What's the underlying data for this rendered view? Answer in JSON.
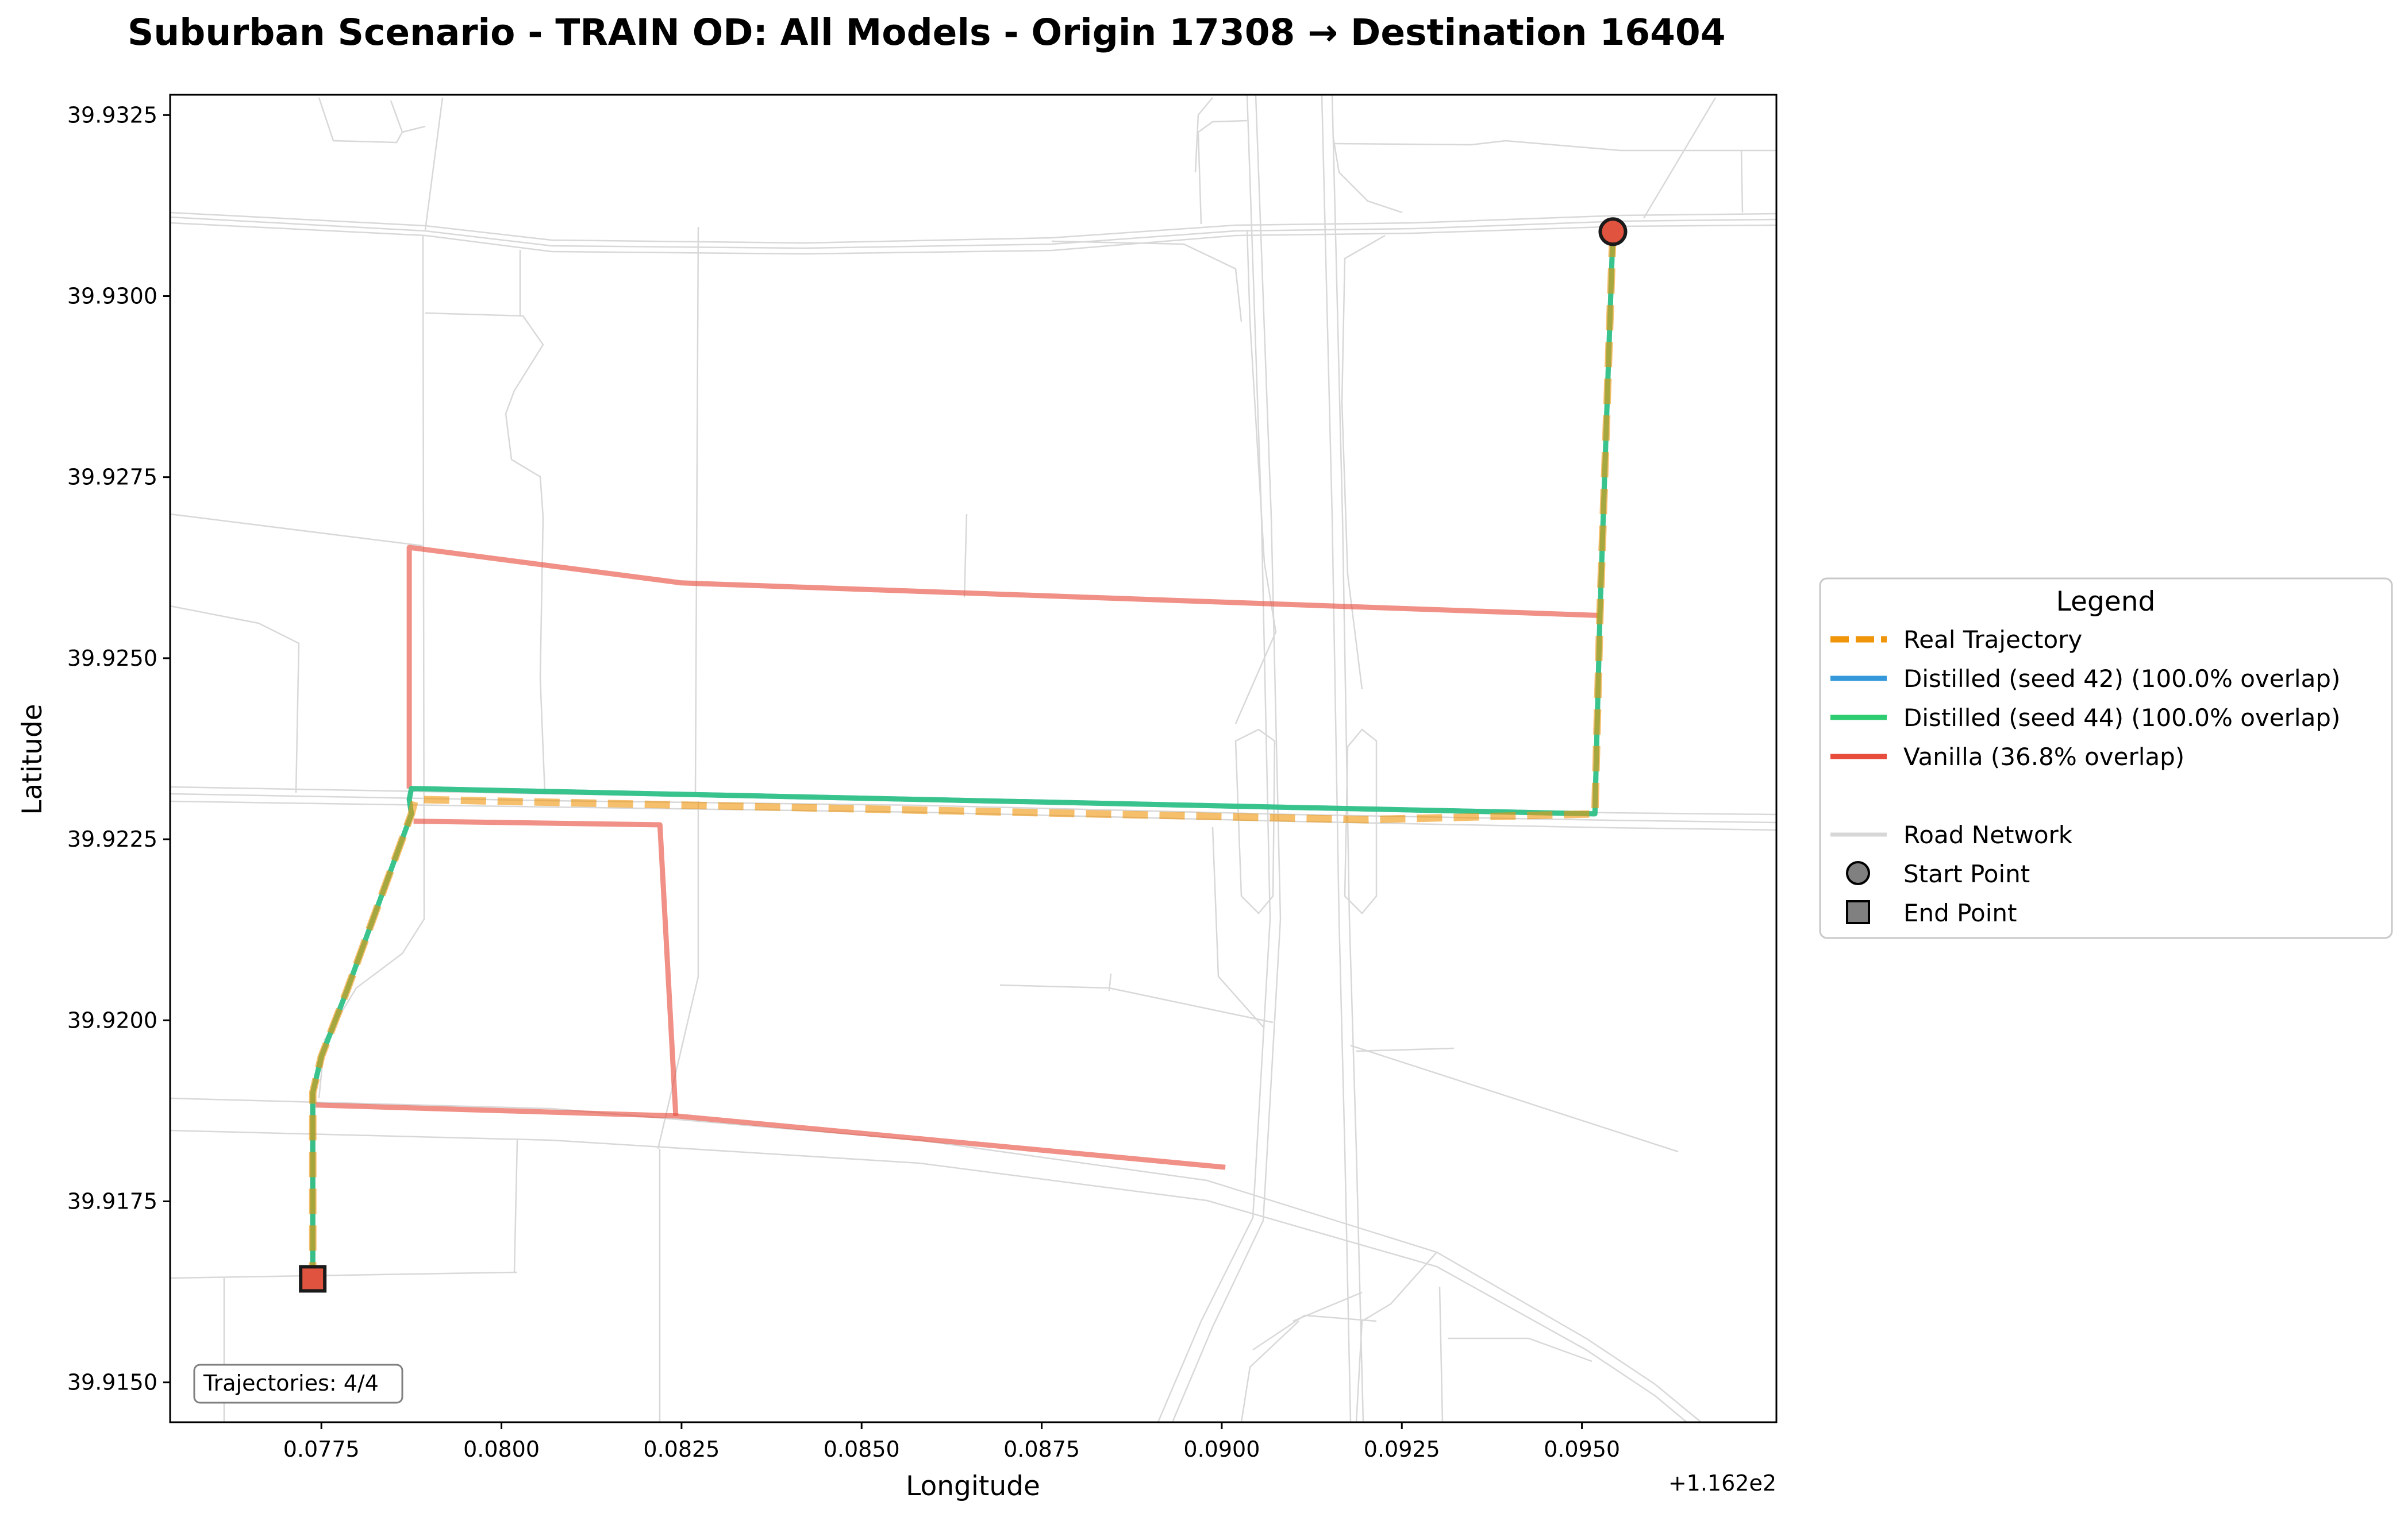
{
  "title": "Suburban Scenario - TRAIN OD: All Models - Origin 17308 → Destination 16404",
  "colors": {
    "real": "#f0940a",
    "distilled_42": "#3498db",
    "distilled_44": "#2ecc71",
    "vanilla": "#e74c3c",
    "road": "#d3d3d3",
    "start_marker": "#e0533f",
    "end_marker": "#e0533f"
  },
  "chart_data": {
    "type": "map",
    "title": "Suburban Scenario - TRAIN OD: All Models - Origin 17308 → Destination 16404",
    "xlabel": "Longitude",
    "ylabel": "Latitude",
    "x_offset_label": "+1.162e2",
    "xlim": [
      0.0754,
      0.0977
    ],
    "ylim": [
      39.91445,
      39.93278
    ],
    "xticks": [
      0.0775,
      0.08,
      0.0825,
      0.085,
      0.0875,
      0.09,
      0.0925,
      0.095
    ],
    "xtick_labels": [
      "0.0775",
      "0.0800",
      "0.0825",
      "0.0850",
      "0.0875",
      "0.0900",
      "0.0925",
      "0.0950"
    ],
    "yticks": [
      39.915,
      39.9175,
      39.92,
      39.9225,
      39.925,
      39.9275,
      39.93,
      39.9325
    ],
    "ytick_labels": [
      "39.9150",
      "39.9175",
      "39.9200",
      "39.9225",
      "39.9250",
      "39.9275",
      "39.9300",
      "39.9325"
    ],
    "annotation": "Trajectories: 4/4",
    "origin": {
      "lon": 0.09543,
      "lat": 39.93089
    },
    "destination": {
      "lon": 0.07738,
      "lat": 39.91643
    },
    "legend": {
      "title": "Legend",
      "placement": "right-outside",
      "entries": [
        {
          "label": "Real Trajectory",
          "style": "dashed",
          "color_key": "real"
        },
        {
          "label": "Distilled (seed 42) (100.0% overlap)",
          "style": "solid",
          "color_key": "distilled_42"
        },
        {
          "label": "Distilled (seed 44) (100.0% overlap)",
          "style": "solid",
          "color_key": "distilled_44"
        },
        {
          "label": "Vanilla (36.8% overlap)",
          "style": "solid",
          "color_key": "vanilla"
        },
        {
          "label": "Road Network",
          "style": "solid",
          "color_key": "road"
        },
        {
          "label": "Start Point",
          "style": "circle",
          "color_key": "start_marker"
        },
        {
          "label": "End Point",
          "style": "square",
          "color_key": "end_marker"
        }
      ]
    },
    "series": [
      {
        "name": "Real Trajectory",
        "color_key": "real",
        "points": [
          [
            0.09543,
            39.93089
          ],
          [
            0.09525,
            39.92559
          ],
          [
            0.09518,
            39.92285
          ],
          [
            0.092,
            39.92277
          ],
          [
            0.0788,
            39.92305
          ],
          [
            0.07875,
            39.92285
          ],
          [
            0.07785,
            39.9204
          ],
          [
            0.0775,
            39.9195
          ],
          [
            0.07738,
            39.919
          ],
          [
            0.07738,
            39.91643
          ]
        ]
      },
      {
        "name": "Distilled (seed 42)",
        "color_key": "distilled_42",
        "points": [
          [
            0.09543,
            39.93089
          ],
          [
            0.09525,
            39.92559
          ],
          [
            0.09518,
            39.92285
          ],
          [
            0.07875,
            39.9232
          ],
          [
            0.07872,
            39.92305
          ],
          [
            0.07875,
            39.92285
          ],
          [
            0.07785,
            39.9204
          ],
          [
            0.0775,
            39.9195
          ],
          [
            0.07738,
            39.919
          ],
          [
            0.07738,
            39.91643
          ]
        ]
      },
      {
        "name": "Distilled (seed 44)",
        "color_key": "distilled_44",
        "points": [
          [
            0.09543,
            39.93089
          ],
          [
            0.09525,
            39.92559
          ],
          [
            0.09518,
            39.92285
          ],
          [
            0.07875,
            39.9232
          ],
          [
            0.07872,
            39.92305
          ],
          [
            0.07875,
            39.92285
          ],
          [
            0.07785,
            39.9204
          ],
          [
            0.0775,
            39.9195
          ],
          [
            0.07738,
            39.919
          ],
          [
            0.07738,
            39.91643
          ]
        ]
      },
      {
        "name": "Vanilla",
        "color_key": "vanilla",
        "segments": [
          [
            [
              0.09525,
              39.92559
            ],
            [
              0.0825,
              39.92604
            ],
            [
              0.07872,
              39.92653
            ],
            [
              0.07872,
              39.9232
            ]
          ],
          [
            [
              0.07878,
              39.92275
            ],
            [
              0.0822,
              39.9227
            ],
            [
              0.08242,
              39.91868
            ]
          ],
          [
            [
              0.07742,
              39.91883
            ],
            [
              0.08242,
              39.91868
            ],
            [
              0.09005,
              39.91797
            ]
          ],
          [
            [
              0.07738,
              39.919
            ],
            [
              0.07738,
              39.91643
            ]
          ]
        ]
      }
    ]
  }
}
